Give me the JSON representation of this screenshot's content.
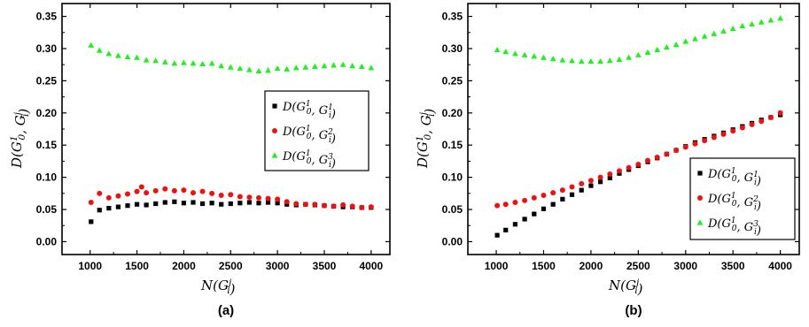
{
  "colors": {
    "series1": "#000000",
    "series2": "#ee1111",
    "series3": "#22ee22"
  },
  "chart_data": [
    {
      "type": "scatter",
      "panel_label": "(a)",
      "xlabel": "N(G_i^j)",
      "ylabel": "D(G_0^1, G_i^j)",
      "xlim": [
        700,
        4200
      ],
      "ylim": [
        -0.02,
        0.37
      ],
      "xticks": [
        "1000",
        "1500",
        "2000",
        "2500",
        "3000",
        "3500",
        "4000"
      ],
      "yticks": [
        "0.00",
        "0.05",
        "0.10",
        "0.15",
        "0.20",
        "0.25",
        "0.30",
        "0.35"
      ],
      "grid": false,
      "legend_position": "right-middle",
      "legend_labels": [
        "D(G_0^1, G_i^1)",
        "D(G_0^1, G_i^2)",
        "D(G_0^1, G_i^3)"
      ],
      "series": [
        {
          "name": "D(G_0^1, G_i^1)",
          "marker": "square",
          "x": [
            1010,
            1100,
            1200,
            1300,
            1400,
            1500,
            1600,
            1700,
            1800,
            1900,
            2000,
            2100,
            2200,
            2300,
            2400,
            2500,
            2600,
            2700,
            2800,
            2900,
            3000,
            3100,
            3200,
            3300,
            3400,
            3500,
            3600,
            3700,
            3800,
            3900,
            4000
          ],
          "y": [
            0.031,
            0.049,
            0.052,
            0.054,
            0.056,
            0.058,
            0.057,
            0.059,
            0.061,
            0.062,
            0.06,
            0.061,
            0.059,
            0.06,
            0.058,
            0.059,
            0.06,
            0.061,
            0.06,
            0.061,
            0.06,
            0.058,
            0.057,
            0.058,
            0.057,
            0.056,
            0.055,
            0.054,
            0.054,
            0.053,
            0.053
          ]
        },
        {
          "name": "D(G_0^1, G_i^2)",
          "marker": "circle",
          "x": [
            1010,
            1100,
            1200,
            1300,
            1400,
            1500,
            1550,
            1600,
            1700,
            1800,
            1900,
            2000,
            2100,
            2200,
            2300,
            2400,
            2500,
            2600,
            2700,
            2800,
            2900,
            3000,
            3100,
            3200,
            3300,
            3400,
            3500,
            3600,
            3700,
            3800,
            3900,
            4000
          ],
          "y": [
            0.061,
            0.075,
            0.068,
            0.071,
            0.074,
            0.078,
            0.085,
            0.076,
            0.079,
            0.082,
            0.079,
            0.08,
            0.076,
            0.078,
            0.075,
            0.072,
            0.073,
            0.07,
            0.069,
            0.068,
            0.067,
            0.066,
            0.062,
            0.059,
            0.058,
            0.058,
            0.056,
            0.055,
            0.057,
            0.055,
            0.053,
            0.054
          ]
        },
        {
          "name": "D(G_0^1, G_i^3)",
          "marker": "triangle",
          "x": [
            1010,
            1100,
            1200,
            1300,
            1400,
            1500,
            1600,
            1700,
            1800,
            1900,
            2000,
            2100,
            2200,
            2300,
            2400,
            2500,
            2600,
            2700,
            2800,
            2900,
            3000,
            3100,
            3200,
            3300,
            3400,
            3500,
            3600,
            3700,
            3800,
            3900,
            4000
          ],
          "y": [
            0.305,
            0.297,
            0.292,
            0.289,
            0.287,
            0.286,
            0.282,
            0.281,
            0.279,
            0.277,
            0.278,
            0.277,
            0.276,
            0.277,
            0.273,
            0.271,
            0.269,
            0.267,
            0.265,
            0.266,
            0.269,
            0.268,
            0.27,
            0.271,
            0.272,
            0.273,
            0.274,
            0.275,
            0.273,
            0.272,
            0.27
          ]
        }
      ]
    },
    {
      "type": "scatter",
      "panel_label": "(b)",
      "xlabel": "N(G_i^j)",
      "ylabel": "D(G_0^1, G_i^j)",
      "xlim": [
        700,
        4200
      ],
      "ylim": [
        -0.02,
        0.37
      ],
      "xticks": [
        "1000",
        "1500",
        "2000",
        "2500",
        "3000",
        "3500",
        "4000"
      ],
      "yticks": [
        "0.00",
        "0.05",
        "0.10",
        "0.15",
        "0.20",
        "0.25",
        "0.30",
        "0.35"
      ],
      "grid": false,
      "legend_position": "bottom-right",
      "legend_labels": [
        "D(G_0^1, G_i^1)",
        "D(G_0^1, G_i^2)",
        "D(G_0^1, G_i^3)"
      ],
      "series": [
        {
          "name": "D(G_0^1, G_i^1)",
          "marker": "square",
          "x": [
            1010,
            1100,
            1200,
            1300,
            1400,
            1500,
            1600,
            1700,
            1800,
            1900,
            2000,
            2100,
            2200,
            2300,
            2400,
            2500,
            2600,
            2700,
            2800,
            2900,
            3000,
            3100,
            3200,
            3300,
            3400,
            3500,
            3600,
            3700,
            3800,
            3900,
            4000
          ],
          "y": [
            0.01,
            0.018,
            0.027,
            0.035,
            0.043,
            0.051,
            0.058,
            0.066,
            0.073,
            0.08,
            0.087,
            0.093,
            0.099,
            0.106,
            0.112,
            0.118,
            0.124,
            0.13,
            0.136,
            0.142,
            0.148,
            0.154,
            0.159,
            0.164,
            0.169,
            0.174,
            0.179,
            0.184,
            0.189,
            0.193,
            0.197
          ]
        },
        {
          "name": "D(G_0^1, G_i^2)",
          "marker": "circle",
          "x": [
            1010,
            1100,
            1200,
            1300,
            1400,
            1500,
            1600,
            1700,
            1800,
            1900,
            2000,
            2100,
            2200,
            2300,
            2400,
            2500,
            2600,
            2700,
            2800,
            2900,
            3000,
            3100,
            3200,
            3300,
            3400,
            3500,
            3600,
            3700,
            3800,
            3900,
            4000
          ],
          "y": [
            0.056,
            0.058,
            0.061,
            0.064,
            0.068,
            0.072,
            0.076,
            0.08,
            0.085,
            0.09,
            0.095,
            0.1,
            0.105,
            0.11,
            0.115,
            0.12,
            0.126,
            0.131,
            0.136,
            0.142,
            0.147,
            0.152,
            0.157,
            0.162,
            0.167,
            0.172,
            0.177,
            0.182,
            0.187,
            0.193,
            0.2
          ]
        },
        {
          "name": "D(G_0^1, G_i^3)",
          "marker": "triangle",
          "x": [
            1010,
            1100,
            1200,
            1300,
            1400,
            1500,
            1600,
            1700,
            1800,
            1900,
            2000,
            2100,
            2200,
            2300,
            2400,
            2500,
            2600,
            2700,
            2800,
            2900,
            3000,
            3100,
            3200,
            3300,
            3400,
            3500,
            3600,
            3700,
            3800,
            3900,
            4000
          ],
          "y": [
            0.298,
            0.295,
            0.292,
            0.29,
            0.288,
            0.286,
            0.284,
            0.282,
            0.281,
            0.28,
            0.28,
            0.28,
            0.281,
            0.283,
            0.286,
            0.29,
            0.294,
            0.298,
            0.302,
            0.306,
            0.311,
            0.315,
            0.319,
            0.323,
            0.327,
            0.331,
            0.335,
            0.338,
            0.341,
            0.344,
            0.347
          ]
        }
      ]
    }
  ]
}
